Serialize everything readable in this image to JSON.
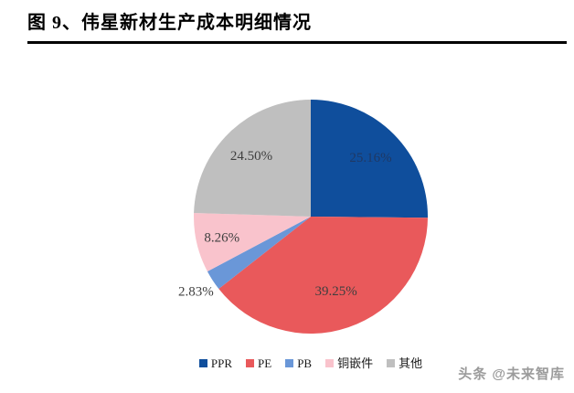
{
  "title": "图 9、伟星新材生产成本明细情况",
  "watermark": "头条 @未来智库",
  "chart_data": {
    "type": "pie",
    "title": "图 9、伟星新材生产成本明细情况",
    "labels": [
      "PPR",
      "PE",
      "PB",
      "铜嵌件",
      "其他"
    ],
    "slugs": [
      "ppr",
      "pe",
      "pb",
      "copper-insert",
      "others"
    ],
    "values": [
      25.16,
      39.25,
      2.83,
      8.26,
      24.5
    ],
    "value_labels": [
      "25.16%",
      "39.25%",
      "2.83%",
      "8.26%",
      "24.50%"
    ],
    "colors": [
      "#0F4E9C",
      "#E9595B",
      "#6A97D8",
      "#F9C3CC",
      "#BFBFBF"
    ],
    "label_colors": [
      "#1F3864",
      "#3F3F3F",
      "#3F3F3F",
      "#3F3F3F",
      "#3F3F3F"
    ],
    "label_radius": [
      0.72,
      0.67,
      1.17,
      0.78,
      0.73
    ],
    "start_angle_deg": 0,
    "direction": "clockwise",
    "legend_position": "bottom",
    "grid": "off"
  }
}
